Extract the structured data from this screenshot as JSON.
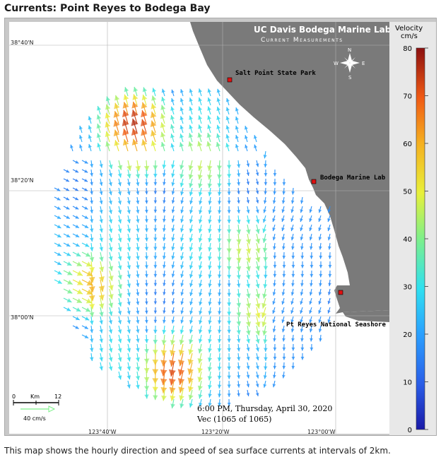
{
  "title": "Currents: Point Reyes to Bodega Bay",
  "caption": "This map shows the hourly direction and speed of sea surface currents at intervals of 2km.",
  "header": {
    "lab": "UC Davis Bodega Marine Lab",
    "subtitle": "Current Measurements"
  },
  "compass": {
    "n": "N",
    "s": "S",
    "e": "E",
    "w": "W"
  },
  "places": {
    "salt_point": "Salt Point State Park",
    "bodega": "Bodega Marine Lab",
    "pt_reyes": "Pt Reyes National Seashore"
  },
  "lat_labels": {
    "l1": "38°40'N",
    "l2": "38°20'N",
    "l3": "38°00'N"
  },
  "lon_labels": {
    "l1": "123°40'W",
    "l2": "123°20'W",
    "l3": "123°00'W"
  },
  "scale": {
    "zero": "0",
    "unit": "Km",
    "max": "12",
    "vector": "40 cm/s"
  },
  "timestamp": "6:00 PM, Thursday, April 30, 2020",
  "vec": "Vec (1065 of 1065)",
  "legend": {
    "title_line1": "Velocity",
    "title_line2": "cm/s",
    "ticks": [
      "80",
      "70",
      "60",
      "50",
      "40",
      "30",
      "20",
      "10",
      "0"
    ],
    "colors": [
      "#1a1aa8",
      "#2a5ee8",
      "#2aa0ff",
      "#2fe0f0",
      "#7ef08a",
      "#e8f03a",
      "#f5b020",
      "#f05a14",
      "#8c1010"
    ]
  },
  "colors": {
    "land": "#7a7a7a",
    "ocean": "#ffffff",
    "site_marker": "#e01010"
  }
}
